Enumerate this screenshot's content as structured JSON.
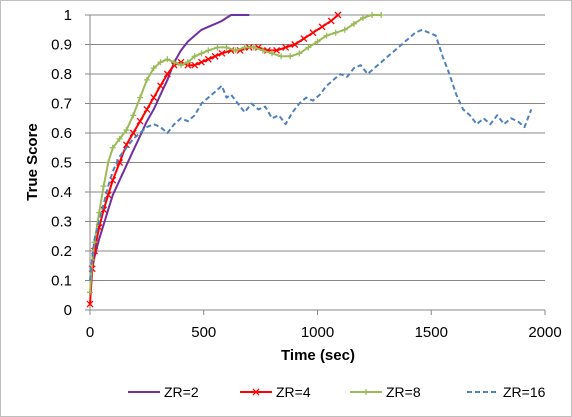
{
  "chart_data": {
    "type": "line",
    "xlabel": "Time (sec)",
    "ylabel": "True Score",
    "xlim": [
      0,
      2000
    ],
    "ylim": [
      0,
      1
    ],
    "xticks": [
      "0",
      "500",
      "1000",
      "1500",
      "2000"
    ],
    "yticks": [
      "0",
      "0.1",
      "0.2",
      "0.3",
      "0.4",
      "0.5",
      "0.6",
      "0.7",
      "0.8",
      "0.9",
      "1"
    ],
    "grid": "horizontal",
    "legend_position": "bottom",
    "series": [
      {
        "name": "ZR=2",
        "color": "#7030a0",
        "style": "solid",
        "marker": "none",
        "x": [
          0,
          10,
          20,
          40,
          60,
          80,
          100,
          130,
          160,
          190,
          220,
          250,
          280,
          310,
          340,
          370,
          400,
          430,
          460,
          490,
          520,
          550,
          580,
          600,
          620,
          640,
          660,
          680,
          700
        ],
        "y": [
          0.05,
          0.14,
          0.18,
          0.24,
          0.29,
          0.34,
          0.39,
          0.44,
          0.49,
          0.54,
          0.59,
          0.64,
          0.68,
          0.73,
          0.78,
          0.84,
          0.88,
          0.91,
          0.93,
          0.95,
          0.96,
          0.97,
          0.98,
          0.99,
          1.0,
          1.0,
          1.0,
          1.0,
          1.0
        ]
      },
      {
        "name": "ZR=4",
        "color": "#ff0000",
        "style": "solid",
        "marker": "x",
        "x": [
          0,
          10,
          20,
          40,
          60,
          80,
          100,
          130,
          160,
          190,
          220,
          250,
          280,
          310,
          340,
          370,
          400,
          430,
          460,
          490,
          520,
          550,
          580,
          620,
          660,
          700,
          740,
          780,
          820,
          860,
          900,
          940,
          980,
          1020,
          1060,
          1090
        ],
        "y": [
          0.02,
          0.14,
          0.2,
          0.28,
          0.34,
          0.39,
          0.44,
          0.5,
          0.56,
          0.6,
          0.64,
          0.68,
          0.72,
          0.76,
          0.8,
          0.83,
          0.84,
          0.83,
          0.83,
          0.84,
          0.85,
          0.86,
          0.87,
          0.88,
          0.88,
          0.89,
          0.89,
          0.88,
          0.88,
          0.89,
          0.9,
          0.92,
          0.94,
          0.96,
          0.98,
          1.0
        ]
      },
      {
        "name": "ZR=8",
        "color": "#9bbb59",
        "style": "solid",
        "marker": "+",
        "x": [
          0,
          10,
          20,
          40,
          60,
          80,
          100,
          130,
          160,
          190,
          220,
          250,
          280,
          310,
          340,
          370,
          400,
          430,
          460,
          490,
          520,
          560,
          600,
          640,
          680,
          720,
          760,
          800,
          840,
          880,
          920,
          960,
          1000,
          1040,
          1080,
          1120,
          1160,
          1200,
          1240,
          1280
        ],
        "y": [
          0.06,
          0.17,
          0.23,
          0.33,
          0.42,
          0.5,
          0.55,
          0.58,
          0.61,
          0.66,
          0.72,
          0.78,
          0.82,
          0.84,
          0.85,
          0.84,
          0.83,
          0.84,
          0.86,
          0.87,
          0.88,
          0.89,
          0.89,
          0.88,
          0.89,
          0.89,
          0.88,
          0.87,
          0.86,
          0.86,
          0.87,
          0.89,
          0.91,
          0.93,
          0.94,
          0.95,
          0.97,
          0.99,
          1.0,
          1.0
        ]
      },
      {
        "name": "ZR=16",
        "color": "#4f81bd",
        "style": "dashed",
        "marker": "none",
        "x": [
          0,
          10,
          20,
          40,
          60,
          80,
          100,
          130,
          160,
          190,
          220,
          250,
          280,
          310,
          340,
          370,
          400,
          430,
          460,
          490,
          520,
          550,
          580,
          600,
          620,
          650,
          680,
          710,
          740,
          770,
          800,
          830,
          860,
          890,
          920,
          950,
          980,
          1010,
          1040,
          1070,
          1100,
          1130,
          1160,
          1190,
          1220,
          1250,
          1280,
          1310,
          1340,
          1370,
          1400,
          1430,
          1460,
          1490,
          1520,
          1550,
          1580,
          1610,
          1640,
          1670,
          1700,
          1730,
          1760,
          1790,
          1820,
          1850,
          1880,
          1910,
          1940
        ],
        "y": [
          0.1,
          0.18,
          0.24,
          0.3,
          0.36,
          0.42,
          0.47,
          0.52,
          0.55,
          0.58,
          0.6,
          0.62,
          0.63,
          0.62,
          0.6,
          0.63,
          0.65,
          0.64,
          0.66,
          0.7,
          0.72,
          0.74,
          0.76,
          0.72,
          0.73,
          0.7,
          0.67,
          0.7,
          0.68,
          0.69,
          0.65,
          0.66,
          0.63,
          0.67,
          0.7,
          0.72,
          0.71,
          0.73,
          0.76,
          0.78,
          0.8,
          0.79,
          0.82,
          0.83,
          0.8,
          0.82,
          0.84,
          0.86,
          0.88,
          0.9,
          0.92,
          0.94,
          0.95,
          0.94,
          0.93,
          0.86,
          0.8,
          0.73,
          0.68,
          0.66,
          0.63,
          0.65,
          0.63,
          0.66,
          0.63,
          0.65,
          0.64,
          0.62,
          0.68
        ]
      }
    ]
  }
}
